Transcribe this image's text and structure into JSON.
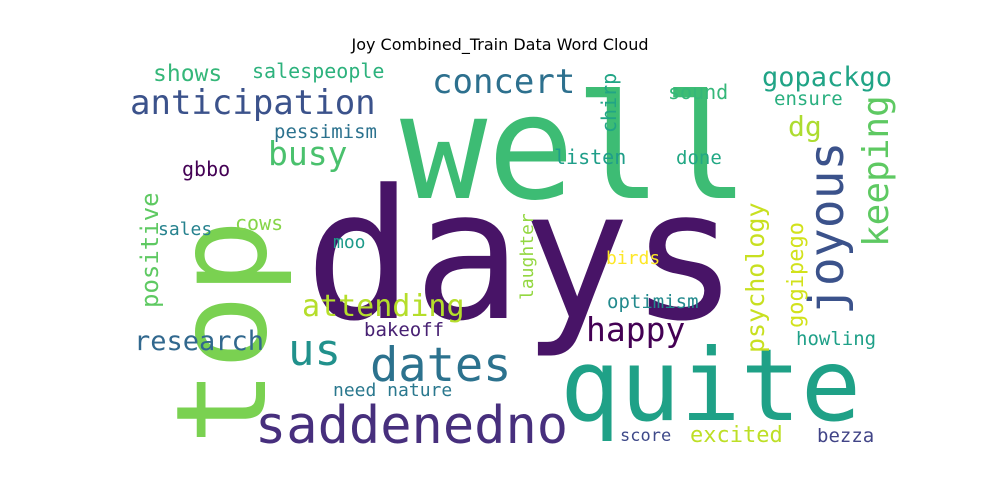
{
  "title": "Joy Combined_Train Data Word Cloud",
  "words": [
    {
      "text": "days",
      "color": "#481467"
    },
    {
      "text": "well",
      "color": "#3dbc74"
    },
    {
      "text": "top",
      "color": "#7ad151"
    },
    {
      "text": "quite",
      "color": "#1fa187"
    },
    {
      "text": "saddenedno",
      "color": "#472f7d"
    },
    {
      "text": "dates",
      "color": "#2c728e"
    },
    {
      "text": "anticipation",
      "color": "#3b528b"
    },
    {
      "text": "concert",
      "color": "#2d708e"
    },
    {
      "text": "joyous",
      "color": "#3b528b"
    },
    {
      "text": "keeping",
      "color": "#5ec962"
    },
    {
      "text": "us",
      "color": "#21918c"
    },
    {
      "text": "attending",
      "color": "#b5de2b"
    },
    {
      "text": "happy",
      "color": "#440154"
    },
    {
      "text": "busy",
      "color": "#4ac16d"
    },
    {
      "text": "gopackgo",
      "color": "#20a486"
    },
    {
      "text": "dg",
      "color": "#addc30"
    },
    {
      "text": "research",
      "color": "#31688e"
    },
    {
      "text": "psychology",
      "color": "#c8e020"
    },
    {
      "text": "gogipego",
      "color": "#d2e21b"
    },
    {
      "text": "positive",
      "color": "#5ec962"
    },
    {
      "text": "shows",
      "color": "#35b779"
    },
    {
      "text": "salespeople",
      "color": "#2db27d"
    },
    {
      "text": "chirp",
      "color": "#21a585"
    },
    {
      "text": "sound",
      "color": "#35b779"
    },
    {
      "text": "ensure",
      "color": "#29af7f"
    },
    {
      "text": "pessimism",
      "color": "#2c728e"
    },
    {
      "text": "listen",
      "color": "#1f9e89"
    },
    {
      "text": "done",
      "color": "#22a884"
    },
    {
      "text": "gbbo",
      "color": "#440154"
    },
    {
      "text": "cows",
      "color": "#86d549"
    },
    {
      "text": "sales",
      "color": "#26828e"
    },
    {
      "text": "moo",
      "color": "#1e9b8a"
    },
    {
      "text": "laughter",
      "color": "#93d741"
    },
    {
      "text": "birds",
      "color": "#fde725"
    },
    {
      "text": "optimism",
      "color": "#238a8d"
    },
    {
      "text": "bakeoff",
      "color": "#482173"
    },
    {
      "text": "howling",
      "color": "#1fa088"
    },
    {
      "text": "need nature",
      "color": "#2a788e"
    },
    {
      "text": "score",
      "color": "#3e4989"
    },
    {
      "text": "excited",
      "color": "#bddf26"
    },
    {
      "text": "bezza",
      "color": "#414487"
    }
  ]
}
